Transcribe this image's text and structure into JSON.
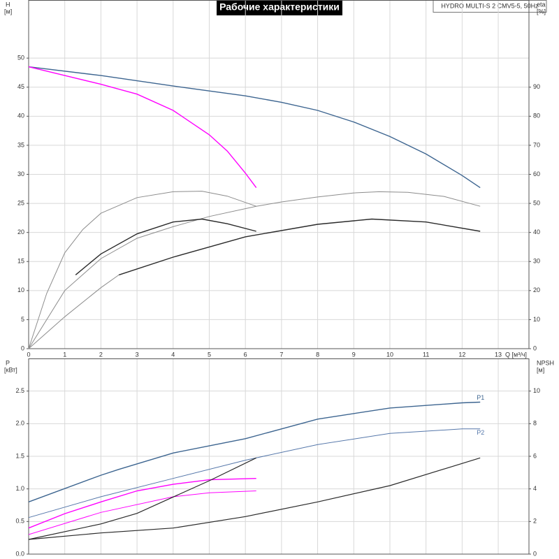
{
  "chart_data": [
    {
      "type": "line",
      "title": "Рабочие характеристики",
      "subtitle": "HYDRO MULTI-S 2 CMV5-5, 50Hz",
      "ylabel": "H",
      "ylabel_unit": "[м]",
      "y2label": "eta",
      "y2label_unit": "[%]",
      "xlabel": "Q [м³/ч]",
      "xlim": [
        0,
        13.85
      ],
      "xticks": [
        0,
        1,
        2,
        3,
        4,
        5,
        6,
        7,
        8,
        9,
        10,
        11,
        12,
        13
      ],
      "ylim": [
        0,
        60
      ],
      "yticks": [
        0,
        5,
        10,
        15,
        20,
        25,
        30,
        35,
        40,
        45,
        50
      ],
      "y2lim": [
        0,
        120
      ],
      "y2ticks": [
        0,
        10,
        20,
        30,
        40,
        50,
        60,
        70,
        80,
        90
      ],
      "grid": true,
      "series": [
        {
          "color": "#3d6590",
          "line_width": 1.4,
          "x": [
            0,
            2,
            4,
            6,
            7,
            8,
            9,
            10,
            11,
            12,
            12.5
          ],
          "values": [
            48.5,
            47,
            45.2,
            43.5,
            42.4,
            41,
            39,
            36.5,
            33.5,
            29.8,
            27.7
          ]
        },
        {
          "color": "#ff00ff",
          "line_width": 1.4,
          "x": [
            0,
            1,
            2,
            3,
            4,
            5,
            5.5,
            6,
            6.3
          ],
          "values": [
            48.5,
            47,
            45.5,
            43.8,
            41,
            36.8,
            34,
            30.2,
            27.7
          ]
        },
        {
          "color": "#8c8c8c",
          "line_width": 1,
          "axis": "y2",
          "x": [
            0,
            0.5,
            1,
            1.5,
            2,
            3,
            4,
            4.8,
            5.5,
            6.3
          ],
          "values": [
            0,
            19,
            33,
            41,
            46.6,
            52,
            54,
            54.2,
            52.5,
            49
          ]
        },
        {
          "color": "#8c8c8c",
          "line_width": 1,
          "axis": "y2",
          "x": [
            0,
            1,
            2,
            3,
            4,
            5,
            6.3,
            7,
            8,
            9,
            9.7,
            10.5,
            11.5,
            12.5
          ],
          "values": [
            0,
            20,
            31,
            38,
            42,
            45.5,
            49,
            50.5,
            52.2,
            53.6,
            54,
            53.8,
            52.4,
            49
          ]
        },
        {
          "color": "#8c8c8c",
          "line_width": 1,
          "axis": "y2",
          "x": [
            0,
            1,
            2,
            2.5
          ],
          "values": [
            0,
            11,
            21,
            25.4
          ]
        },
        {
          "color": "#2a2a2a",
          "line_width": 1.4,
          "axis": "y2",
          "x": [
            2.5,
            4,
            6,
            8,
            9.5,
            11,
            12.5
          ],
          "values": [
            25.4,
            31.5,
            38.5,
            42.8,
            44.6,
            43.6,
            40.4
          ]
        },
        {
          "color": "#2a2a2a",
          "line_width": 1.4,
          "axis": "y2",
          "x": [
            1.3,
            2,
            3,
            4,
            4.8,
            5.5,
            6.3
          ],
          "values": [
            25.4,
            32.6,
            39.5,
            43.6,
            44.6,
            43,
            40.4
          ]
        }
      ]
    },
    {
      "type": "line",
      "ylabel": "P",
      "ylabel_unit": "[кВт]",
      "y2label": "NPSH",
      "y2label_unit": "[м]",
      "xlim": [
        0,
        13.85
      ],
      "ylim": [
        0,
        3
      ],
      "yticks": [
        {
          "value": 0,
          "label": "0.0"
        },
        0.5,
        {
          "value": 1,
          "label": "1.0"
        },
        1.5,
        {
          "value": 2,
          "label": "2.0"
        },
        2.5
      ],
      "y2lim": [
        0,
        12
      ],
      "y2ticks": [
        0,
        2,
        4,
        6,
        8,
        10
      ],
      "grid": true,
      "series": [
        {
          "name": "P1",
          "color": "#3d6590",
          "line_width": 1.4,
          "x": [
            0,
            2,
            2.5,
            4,
            6,
            8,
            10,
            12,
            12.5
          ],
          "values": [
            0.8,
            1.21,
            1.3,
            1.55,
            1.77,
            2.07,
            2.24,
            2.32,
            2.33
          ]
        },
        {
          "name": "P2",
          "color": "#5577aa",
          "line_width": 1,
          "x": [
            0,
            2,
            4,
            6,
            8,
            10,
            12,
            12.5
          ],
          "values": [
            0.56,
            0.88,
            1.16,
            1.44,
            1.68,
            1.85,
            1.92,
            1.92
          ]
        },
        {
          "color": "#ff00ff",
          "line_width": 1.4,
          "x": [
            0,
            1,
            2,
            3,
            4,
            5,
            6.3
          ],
          "values": [
            0.4,
            0.62,
            0.8,
            0.97,
            1.07,
            1.14,
            1.16
          ]
        },
        {
          "color": "#ff00ff",
          "line_width": 1,
          "x": [
            0,
            2,
            4,
            5,
            6.3
          ],
          "values": [
            0.3,
            0.64,
            0.88,
            0.94,
            0.97
          ]
        },
        {
          "color": "#2a2a2a",
          "line_width": 1.2,
          "axis": "y2",
          "x": [
            0,
            2,
            3,
            4,
            5,
            6.3
          ],
          "values": [
            0.9,
            1.85,
            2.5,
            3.5,
            4.5,
            5.9
          ]
        },
        {
          "color": "#2a2a2a",
          "line_width": 1.2,
          "axis": "y2",
          "x": [
            0,
            2,
            4,
            6,
            8,
            10,
            12.5
          ],
          "values": [
            0.9,
            1.3,
            1.6,
            2.3,
            3.2,
            4.2,
            5.9
          ]
        }
      ]
    }
  ]
}
